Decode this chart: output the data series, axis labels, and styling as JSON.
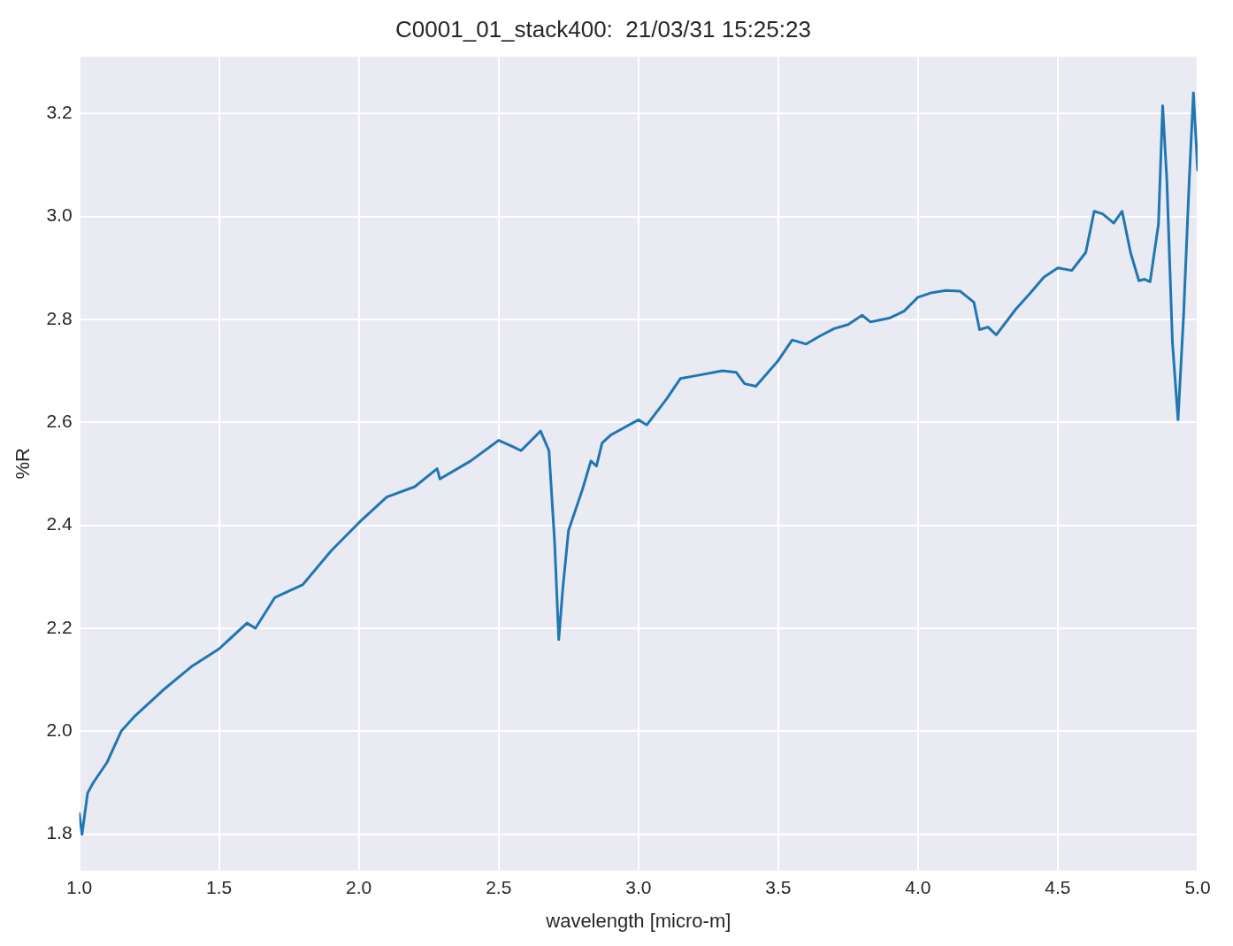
{
  "chart_data": {
    "type": "line",
    "title": "C0001_01_stack400:  21/03/31 15:25:23",
    "xlabel": "wavelength [micro-m]",
    "ylabel": "%R",
    "xlim": [
      1.0,
      5.0
    ],
    "ylim": [
      1.73,
      3.31
    ],
    "xticks": [
      {
        "value": 1,
        "label": "1.0"
      },
      {
        "value": 1.5,
        "label": "1.5"
      },
      {
        "value": 2,
        "label": "2.0"
      },
      {
        "value": 2.5,
        "label": "2.5"
      },
      {
        "value": 3,
        "label": "3.0"
      },
      {
        "value": 3.5,
        "label": "3.5"
      },
      {
        "value": 4,
        "label": "4.0"
      },
      {
        "value": 4.5,
        "label": "4.5"
      },
      {
        "value": 5,
        "label": "5.0"
      }
    ],
    "yticks": [
      {
        "value": 1.8,
        "label": "1.8"
      },
      {
        "value": 2,
        "label": "2.0"
      },
      {
        "value": 2.2,
        "label": "2.2"
      },
      {
        "value": 2.4,
        "label": "2.4"
      },
      {
        "value": 2.6,
        "label": "2.6"
      },
      {
        "value": 2.8,
        "label": "2.8"
      },
      {
        "value": 3,
        "label": "3.0"
      },
      {
        "value": 3.2,
        "label": "3.2"
      }
    ],
    "grid": true,
    "legend": false,
    "marker": "none",
    "line_style": "solid",
    "series": [
      {
        "color": "#1f77b4",
        "x": [
          1.0,
          1.01,
          1.03,
          1.05,
          1.1,
          1.15,
          1.2,
          1.3,
          1.4,
          1.5,
          1.6,
          1.63,
          1.7,
          1.8,
          1.9,
          2.0,
          2.1,
          2.2,
          2.28,
          2.29,
          2.4,
          2.5,
          2.55,
          2.58,
          2.65,
          2.68,
          2.7,
          2.715,
          2.73,
          2.75,
          2.8,
          2.83,
          2.85,
          2.87,
          2.9,
          3.0,
          3.03,
          3.1,
          3.15,
          3.2,
          3.3,
          3.35,
          3.38,
          3.42,
          3.5,
          3.55,
          3.6,
          3.65,
          3.7,
          3.75,
          3.8,
          3.83,
          3.9,
          3.95,
          4.0,
          4.05,
          4.1,
          4.15,
          4.2,
          4.22,
          4.25,
          4.28,
          4.35,
          4.4,
          4.45,
          4.5,
          4.55,
          4.6,
          4.63,
          4.66,
          4.7,
          4.73,
          4.76,
          4.79,
          4.81,
          4.83,
          4.86,
          4.875,
          4.89,
          4.91,
          4.93,
          4.95,
          4.97,
          4.985,
          5.0
        ],
        "values": [
          1.84,
          1.8,
          1.88,
          1.9,
          1.94,
          2.0,
          2.03,
          2.08,
          2.125,
          2.16,
          2.21,
          2.2,
          2.26,
          2.285,
          2.35,
          2.405,
          2.455,
          2.475,
          2.51,
          2.49,
          2.525,
          2.565,
          2.553,
          2.545,
          2.583,
          2.545,
          2.37,
          2.178,
          2.28,
          2.39,
          2.47,
          2.525,
          2.515,
          2.56,
          2.575,
          2.605,
          2.595,
          2.645,
          2.685,
          2.69,
          2.7,
          2.697,
          2.675,
          2.67,
          2.72,
          2.76,
          2.752,
          2.768,
          2.782,
          2.79,
          2.808,
          2.795,
          2.803,
          2.816,
          2.843,
          2.852,
          2.856,
          2.855,
          2.833,
          2.78,
          2.785,
          2.77,
          2.82,
          2.85,
          2.882,
          2.9,
          2.895,
          2.93,
          3.01,
          3.005,
          2.987,
          3.01,
          2.93,
          2.875,
          2.878,
          2.873,
          2.985,
          3.215,
          3.07,
          2.755,
          2.605,
          2.81,
          3.07,
          3.24,
          3.09
        ]
      }
    ]
  }
}
